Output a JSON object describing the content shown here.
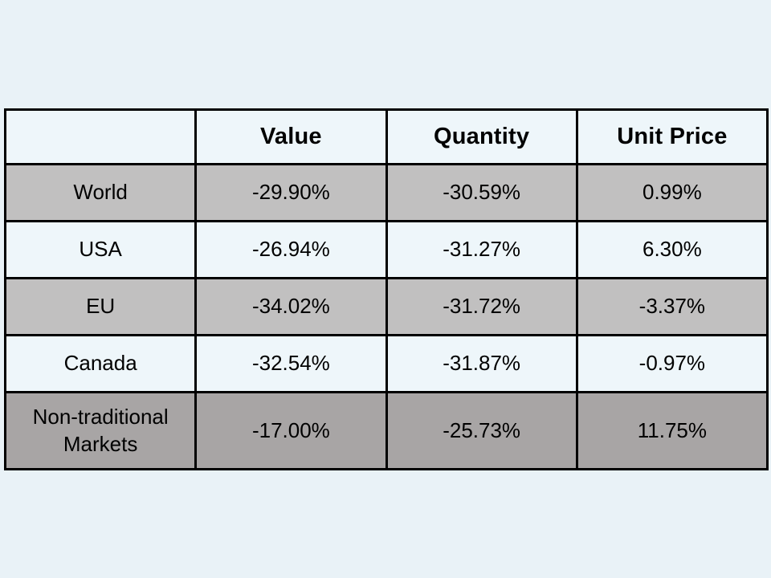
{
  "chart_data": {
    "type": "table",
    "columns": [
      "",
      "Value",
      "Quantity",
      "Unit Price"
    ],
    "rows": [
      [
        "World",
        "-29.90%",
        "-30.59%",
        "0.99%"
      ],
      [
        "USA",
        "-26.94%",
        "-31.27%",
        "6.30%"
      ],
      [
        "EU",
        "-34.02%",
        "-31.72%",
        "-3.37%"
      ],
      [
        "Canada",
        "-32.54%",
        "-31.87%",
        "-0.97%"
      ],
      [
        "Non-traditional Markets",
        "-17.00%",
        "-25.73%",
        "11.75%"
      ]
    ],
    "row_shading": [
      "gray",
      "light",
      "gray",
      "light",
      "dark-gray"
    ],
    "header_style": "bold",
    "grid": "black borders, all cells"
  },
  "colors": {
    "slide_background": "#e9f2f7",
    "light_row": "#eef6fa",
    "gray_row": "#c1c0c0",
    "dark_gray_row": "#a8a5a5",
    "border": "#000000",
    "text": "#000000"
  }
}
